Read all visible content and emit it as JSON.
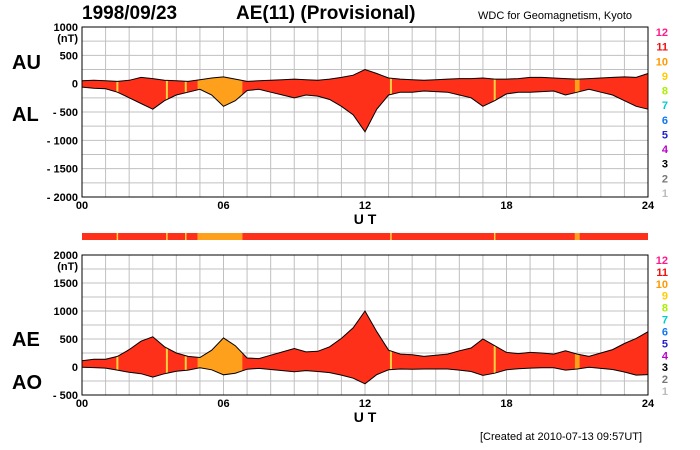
{
  "header": {
    "date": "1998/09/23",
    "title": "AE(11) (Provisional)",
    "source": "WDC for Geomagnetism, Kyoto"
  },
  "footer": {
    "created": "[Created at 2010-07-13 09:57UT]"
  },
  "colors": {
    "index_fill": "#ff3019",
    "accent_fill": "#ffa01c",
    "strip_marker": "#ffd040",
    "grid": "#c0c0c0",
    "frame": "#000000"
  },
  "chart_data": [
    {
      "type": "area",
      "name": "upper-panel",
      "series_labels": [
        "AU",
        "AL"
      ],
      "unit_label": "(nT)",
      "xlabel": "U T",
      "xlim": [
        0,
        24
      ],
      "ylim": [
        -2000,
        1000
      ],
      "x_ticks": [
        0,
        6,
        12,
        18,
        24
      ],
      "x_tick_labels": [
        "00",
        "06",
        "12",
        "18",
        "24"
      ],
      "y_ticks": [
        1000,
        500,
        0,
        -500,
        -1000,
        -1500,
        -2000
      ],
      "y_tick_labels": [
        "1000",
        "500",
        "0",
        "- 500",
        "- 1000",
        "- 1500",
        "- 2000"
      ],
      "grid": true,
      "x": [
        0,
        0.5,
        1,
        1.5,
        2,
        2.5,
        3,
        3.5,
        4,
        4.5,
        5,
        5.5,
        6,
        6.5,
        7,
        7.5,
        8,
        8.5,
        9,
        9.5,
        10,
        10.5,
        11,
        11.5,
        12,
        12.5,
        13,
        13.5,
        14,
        14.5,
        15,
        15.5,
        16,
        16.5,
        17,
        17.5,
        18,
        18.5,
        19,
        19.5,
        20,
        20.5,
        21,
        21.5,
        22,
        22.5,
        23,
        23.5,
        24
      ],
      "series": [
        {
          "name": "AU",
          "values": [
            50,
            60,
            50,
            40,
            60,
            110,
            90,
            60,
            50,
            40,
            70,
            100,
            120,
            80,
            40,
            50,
            60,
            70,
            80,
            70,
            60,
            80,
            110,
            150,
            250,
            180,
            100,
            80,
            70,
            60,
            70,
            80,
            90,
            90,
            100,
            80,
            80,
            90,
            110,
            110,
            100,
            90,
            80,
            90,
            100,
            110,
            120,
            110,
            180
          ]
        },
        {
          "name": "AL",
          "values": [
            -60,
            -80,
            -90,
            -150,
            -250,
            -350,
            -450,
            -300,
            -200,
            -150,
            -100,
            -200,
            -400,
            -300,
            -120,
            -100,
            -150,
            -200,
            -250,
            -200,
            -220,
            -280,
            -400,
            -550,
            -850,
            -450,
            -200,
            -150,
            -150,
            -130,
            -140,
            -150,
            -200,
            -250,
            -400,
            -300,
            -180,
            -150,
            -150,
            -140,
            -130,
            -200,
            -150,
            -100,
            -150,
            -200,
            -300,
            -400,
            -450
          ]
        }
      ]
    },
    {
      "type": "area",
      "name": "lower-panel",
      "series_labels": [
        "AE",
        "AO"
      ],
      "unit_label": "(nT)",
      "xlabel": "U T",
      "xlim": [
        0,
        24
      ],
      "ylim": [
        -500,
        2000
      ],
      "x_ticks": [
        0,
        6,
        12,
        18,
        24
      ],
      "x_tick_labels": [
        "00",
        "06",
        "12",
        "18",
        "24"
      ],
      "y_ticks": [
        2000,
        1500,
        1000,
        500,
        0,
        -500
      ],
      "y_tick_labels": [
        "2000",
        "1500",
        "1000",
        "500",
        "0",
        "- 500"
      ],
      "grid": true,
      "x": [
        0,
        0.5,
        1,
        1.5,
        2,
        2.5,
        3,
        3.5,
        4,
        4.5,
        5,
        5.5,
        6,
        6.5,
        7,
        7.5,
        8,
        8.5,
        9,
        9.5,
        10,
        10.5,
        11,
        11.5,
        12,
        12.5,
        13,
        13.5,
        14,
        14.5,
        15,
        15.5,
        16,
        16.5,
        17,
        17.5,
        18,
        18.5,
        19,
        19.5,
        20,
        20.5,
        21,
        21.5,
        22,
        22.5,
        23,
        23.5,
        24
      ],
      "series": [
        {
          "name": "AE",
          "values": [
            110,
            140,
            140,
            190,
            310,
            460,
            540,
            360,
            250,
            190,
            170,
            300,
            520,
            380,
            160,
            150,
            210,
            270,
            330,
            270,
            280,
            360,
            510,
            700,
            1000,
            630,
            300,
            230,
            220,
            190,
            210,
            230,
            290,
            340,
            500,
            380,
            260,
            240,
            260,
            250,
            230,
            290,
            230,
            190,
            250,
            310,
            420,
            510,
            630
          ]
        },
        {
          "name": "AO",
          "values": [
            -5,
            -10,
            -20,
            -55,
            -95,
            -120,
            -180,
            -120,
            -75,
            -55,
            -15,
            -50,
            -140,
            -110,
            -40,
            -25,
            -45,
            -65,
            -85,
            -65,
            -80,
            -100,
            -145,
            -200,
            -300,
            -135,
            -50,
            -35,
            -40,
            -35,
            -35,
            -35,
            -55,
            -80,
            -150,
            -110,
            -50,
            -30,
            -20,
            -15,
            -15,
            -55,
            -35,
            -5,
            -25,
            -45,
            -90,
            -145,
            -135
          ]
        }
      ]
    }
  ],
  "quality_strip": {
    "segments": [
      {
        "from": 0,
        "to": 4.9,
        "level": "11"
      },
      {
        "from": 4.9,
        "to": 6.8,
        "level": "10"
      },
      {
        "from": 6.8,
        "to": 20.9,
        "level": "11"
      },
      {
        "from": 20.9,
        "to": 21.1,
        "level": "10"
      },
      {
        "from": 21.1,
        "to": 24,
        "level": "11"
      }
    ],
    "markers": [
      1.5,
      3.6,
      4.4,
      13.1,
      17.5
    ]
  },
  "accent_ranges": [
    {
      "from": 4.9,
      "to": 6.8
    },
    {
      "from": 20.9,
      "to": 21.1
    }
  ],
  "level_legend": [
    {
      "label": "12",
      "color": "#ff1a8c"
    },
    {
      "label": "11",
      "color": "#ee1111"
    },
    {
      "label": "10",
      "color": "#ff9900"
    },
    {
      "label": "9",
      "color": "#ffcc00"
    },
    {
      "label": "8",
      "color": "#aaee00"
    },
    {
      "label": "7",
      "color": "#00cccc"
    },
    {
      "label": "6",
      "color": "#1177ee"
    },
    {
      "label": "5",
      "color": "#2222cc"
    },
    {
      "label": "4",
      "color": "#bb00cc"
    },
    {
      "label": "3",
      "color": "#000000"
    },
    {
      "label": "2",
      "color": "#777777"
    },
    {
      "label": "1",
      "color": "#bbbbbb"
    }
  ]
}
